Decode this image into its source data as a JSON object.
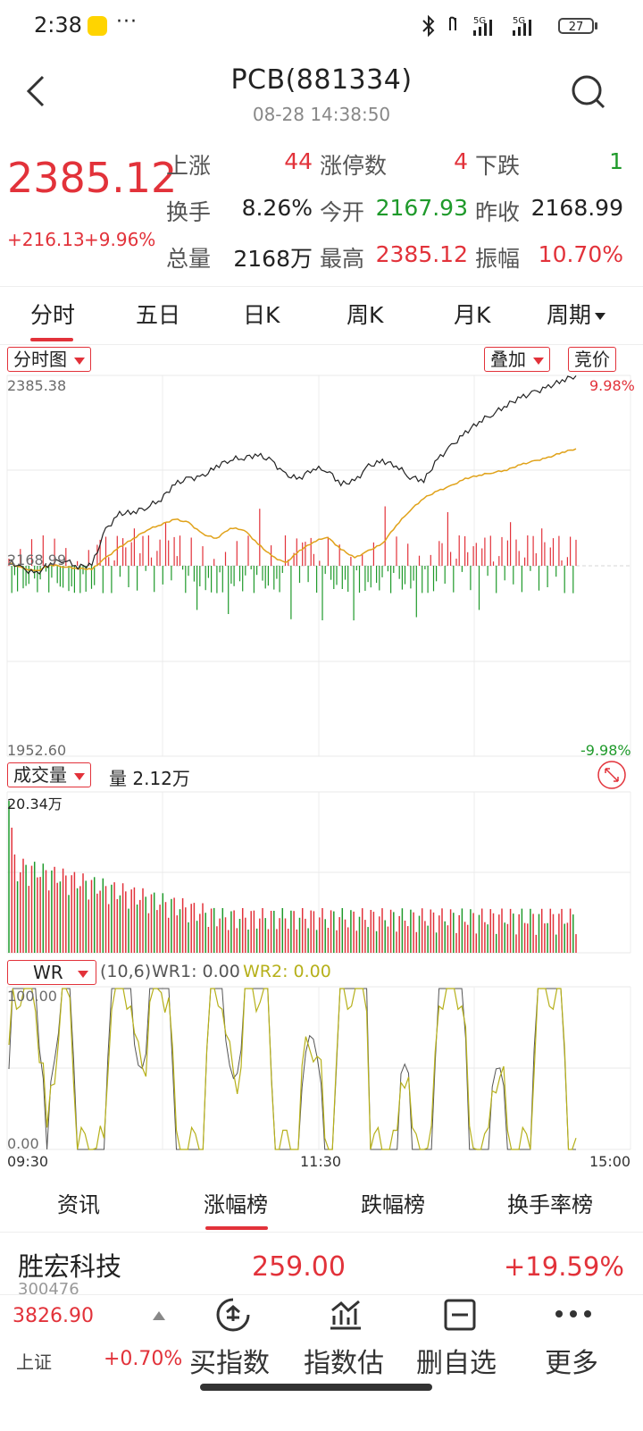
{
  "status": {
    "time": "2:38",
    "battery": "27",
    "signal1": "5G",
    "signal2": "5G"
  },
  "header": {
    "title": "PCB(881334)",
    "subtitle": "08-28 14:38:50"
  },
  "quote": {
    "price": "2385.12",
    "change_abs": "+216.13",
    "change_pct": "+9.96%",
    "rows": [
      [
        {
          "label": "上涨",
          "value": "44",
          "color": "red"
        },
        {
          "label": "涨停数",
          "value": "4",
          "color": "red"
        },
        {
          "label": "下跌",
          "value": "1",
          "color": "green"
        }
      ],
      [
        {
          "label": "换手",
          "value": "8.26%",
          "color": "black"
        },
        {
          "label": "今开",
          "value": "2167.93",
          "color": "green"
        },
        {
          "label": "昨收",
          "value": "2168.99",
          "color": "black"
        }
      ],
      [
        {
          "label": "总量",
          "value": "2168万",
          "color": "black"
        },
        {
          "label": "最高",
          "value": "2385.12",
          "color": "red"
        },
        {
          "label": "振幅",
          "value": "10.70%",
          "color": "red"
        }
      ]
    ]
  },
  "tabs": [
    "分时",
    "五日",
    "日K",
    "周K",
    "月K",
    "周期"
  ],
  "chart": {
    "type_label": "分时图",
    "overlay_label": "叠加",
    "auction_label": "竞价",
    "y_max": "2385.38",
    "y_ref": "2168.99",
    "y_min": "1952.60",
    "pct_max": "9.98%",
    "pct_min": "-9.98%",
    "volume_label": "成交量",
    "volume_value": "量 2.12万",
    "volume_max": "20.34万",
    "wr_label": "WR",
    "wr_params": "(10,6)",
    "wr1": "WR1: 0.00",
    "wr2": "WR2: 0.00",
    "wr_max": "100.00",
    "wr_min": "0.00",
    "time_start": "09:30",
    "time_mid": "11:30",
    "time_end": "15:00"
  },
  "chart_data": {
    "type": "line",
    "title": "",
    "ylabel": "",
    "xlabel": "",
    "ylim": [
      1952.6,
      2385.38
    ],
    "x_ticks": [
      "09:30",
      "11:30",
      "15:00"
    ],
    "series": [
      {
        "name": "",
        "values": [
          2175,
          2165,
          2160,
          2172,
          2176,
          2168,
          2170,
          2210,
          2228,
          2230,
          2236,
          2245,
          2262,
          2268,
          2270,
          2282,
          2290,
          2292,
          2295,
          2288,
          2272,
          2268,
          2280,
          2278,
          2262,
          2265,
          2282,
          2288,
          2283,
          2270,
          2266,
          2290,
          2305,
          2320,
          2333,
          2342,
          2352,
          2360,
          2366,
          2372,
          2380,
          2385
        ]
      },
      {
        "name": "",
        "values": [
          2172,
          2166,
          2163,
          2170,
          2168,
          2166,
          2165,
          2178,
          2190,
          2200,
          2210,
          2216,
          2222,
          2218,
          2205,
          2200,
          2212,
          2210,
          2194,
          2180,
          2172,
          2186,
          2196,
          2202,
          2188,
          2178,
          2186,
          2194,
          2215,
          2232,
          2246,
          2254,
          2260,
          2268,
          2272,
          2275,
          2278,
          2284,
          2288,
          2292,
          2298,
          2302
        ]
      }
    ]
  },
  "info_tabs": [
    "资讯",
    "涨幅榜",
    "跌幅榜",
    "换手率榜"
  ],
  "list_row": {
    "name": "胜宏科技",
    "code": "300476",
    "price": "259.00",
    "change": "+19.59%"
  },
  "bottom": {
    "index_value": "3826.90",
    "index_name": "上证",
    "index_change": "+0.70%",
    "buttons": [
      "买指数",
      "指数估",
      "删自选",
      "更多"
    ]
  },
  "colors": {
    "up": "#e2323a",
    "down": "#1f9a2b",
    "line_main": "#222222",
    "line_avg": "#e0a21a",
    "wr2": "#b6b01a"
  }
}
